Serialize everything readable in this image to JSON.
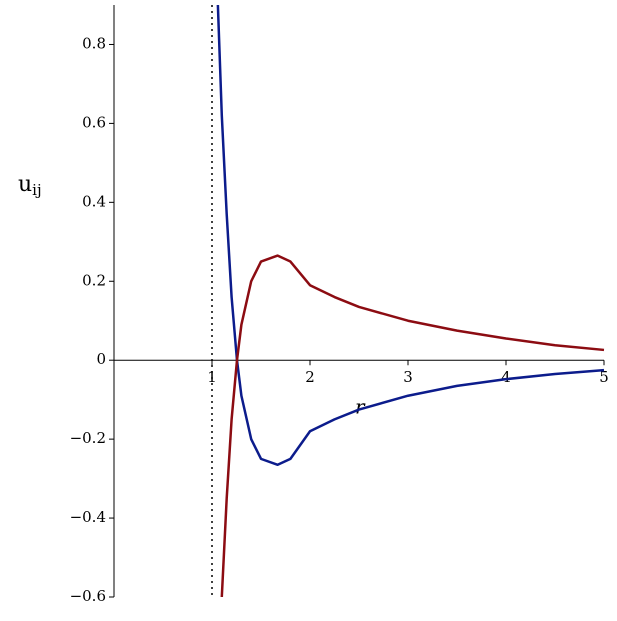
{
  "chart_data": {
    "type": "line",
    "x_label": "r",
    "y_label": {
      "base": "u",
      "sub": "ij"
    },
    "x": [
      1.06,
      1.1,
      1.15,
      1.2,
      1.255,
      1.3,
      1.4,
      1.5,
      1.67,
      1.8,
      2,
      2.25,
      2.5,
      3,
      3.5,
      4,
      4.5,
      5
    ],
    "series": [
      {
        "color": "#0c1c8c",
        "values": [
          0.9,
          0.62,
          0.37,
          0.16,
          0,
          -0.09,
          -0.2,
          -0.25,
          -0.265,
          -0.25,
          -0.18,
          -0.15,
          -0.125,
          -0.09,
          -0.065,
          -0.048,
          -0.035,
          -0.025
        ]
      },
      {
        "color": "#8c0c12",
        "values": [
          null,
          -0.6,
          -0.35,
          -0.15,
          0,
          0.09,
          0.2,
          0.25,
          0.265,
          0.25,
          0.19,
          0.16,
          0.135,
          0.1,
          0.075,
          0.055,
          0.038,
          0.026
        ]
      }
    ],
    "asymptote_x": 1,
    "xlim": [
      0,
      5
    ],
    "ylim": [
      -0.6,
      0.9
    ],
    "xticks": [
      1,
      2,
      3,
      4,
      5
    ],
    "yticks": [
      {
        "value": -0.6,
        "label": "−0.6"
      },
      {
        "value": -0.4,
        "label": "−0.4"
      },
      {
        "value": -0.2,
        "label": "−0.2"
      },
      0,
      0.2,
      0.4,
      0.6,
      0.8
    ]
  }
}
